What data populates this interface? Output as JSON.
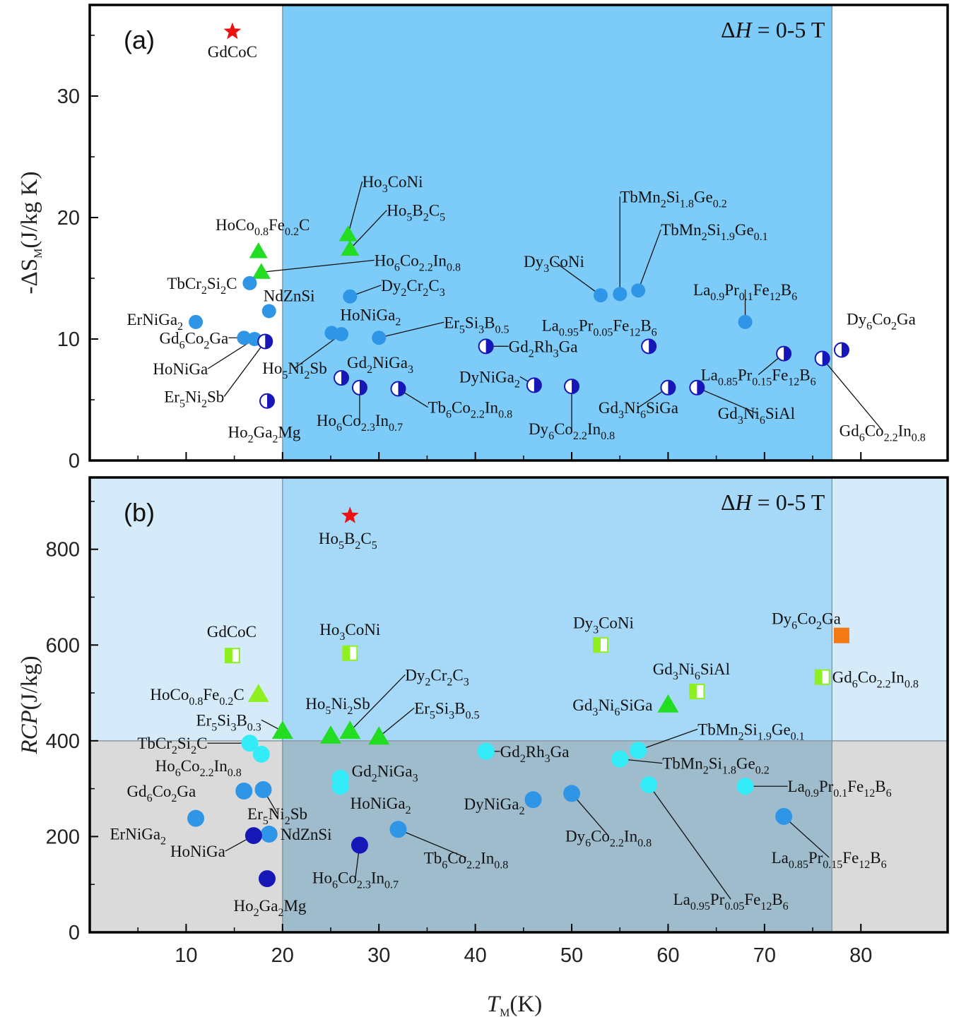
{
  "colors": {
    "region_blue": "#7dcbf8",
    "panel_b_light": "#d5ebfa",
    "panel_b_mid": "#a6d8f8",
    "panel_b_gray": "#dadada",
    "panel_b_dark": "#9ebccc",
    "blue": "#2f95e6",
    "navy": "#1717b8",
    "cyan": "#33ecf8",
    "green": "#22dd22",
    "lime": "#8ef020",
    "red": "#ee1111",
    "orange": "#f47a14"
  },
  "figure": {
    "x_axis_title": "T_M(K)",
    "x_ticks": [
      "10",
      "20",
      "30",
      "40",
      "50",
      "60",
      "70",
      "80"
    ]
  },
  "chart_data": [
    {
      "panel": "(a)",
      "type": "scatter",
      "title": "ΔH = 0-5 T",
      "xlabel": "T_M(K)",
      "ylabel": "-ΔS_M(J/kg K)",
      "xlim": [
        0,
        89
      ],
      "ylim": [
        0,
        37.5
      ],
      "yticks": [
        0,
        10,
        20,
        30
      ],
      "highlight_band_x": [
        20,
        77
      ],
      "points": [
        {
          "name": "GdCoC",
          "x": 14.8,
          "y": 35.3,
          "marker": "star",
          "color": "red"
        },
        {
          "name": "HoCo_{0.8}Fe_{0.2}C",
          "x": 17.5,
          "y": 17.2,
          "marker": "triangle",
          "color": "green"
        },
        {
          "name": "Ho_{6}Co_{2.2}In_{0.8}",
          "x": 17.8,
          "y": 15.5,
          "marker": "triangle",
          "color": "green"
        },
        {
          "name": "Ho_{3}CoNi",
          "x": 26.8,
          "y": 18.6,
          "marker": "triangle",
          "color": "green"
        },
        {
          "name": "Ho_{5}B_{2}C_{5}",
          "x": 27.0,
          "y": 17.4,
          "marker": "triangle",
          "color": "green"
        },
        {
          "name": "TbCr_{2}Si_{2}C",
          "x": 16.6,
          "y": 14.6,
          "marker": "circle",
          "color": "blue"
        },
        {
          "name": "NdZnSi",
          "x": 18.6,
          "y": 12.3,
          "marker": "circle",
          "color": "blue"
        },
        {
          "name": "ErNiGa_{2}",
          "x": 11.0,
          "y": 11.4,
          "marker": "circle",
          "color": "blue"
        },
        {
          "name": "Gd_{6}Co_{2}Ga",
          "x": 16.0,
          "y": 10.1,
          "marker": "circle",
          "color": "blue"
        },
        {
          "name": "HoNiGa",
          "x": 17.1,
          "y": 10.0,
          "marker": "circle",
          "color": "blue"
        },
        {
          "name": "Er_{5}Ni_{2}Sb",
          "x": 18.2,
          "y": 9.8,
          "marker": "halfcircle",
          "color": "navy"
        },
        {
          "name": "Ho_{2}Ga_{2}Mg",
          "x": 18.4,
          "y": 4.9,
          "marker": "halfcircle",
          "color": "navy"
        },
        {
          "name": "Dy_{2}Cr_{2}C_{3}",
          "x": 27.0,
          "y": 13.5,
          "marker": "circle",
          "color": "blue"
        },
        {
          "name": "HoNiGa_{2}",
          "x": 25.1,
          "y": 10.5,
          "marker": "circle",
          "color": "blue"
        },
        {
          "name": "Ho_{5}Ni_{2}Sb",
          "x": 26.1,
          "y": 10.4,
          "marker": "circle",
          "color": "blue"
        },
        {
          "name": "Er_{5}Si_{3}B_{0.5}",
          "x": 30.0,
          "y": 10.1,
          "marker": "circle",
          "color": "blue"
        },
        {
          "name": "Gd_{2}NiGa_{3}",
          "x": 26.1,
          "y": 6.8,
          "marker": "halfcircle",
          "color": "navy"
        },
        {
          "name": "Ho_{6}Co_{2.3}In_{0.7}",
          "x": 28.0,
          "y": 6.0,
          "marker": "halfcircle",
          "color": "navy"
        },
        {
          "name": "Tb_{6}Co_{2.2}In_{0.8}",
          "x": 32.0,
          "y": 5.9,
          "marker": "halfcircle",
          "color": "navy"
        },
        {
          "name": "Gd_{2}Rh_{3}Ga",
          "x": 41.1,
          "y": 9.4,
          "marker": "halfcircle",
          "color": "navy"
        },
        {
          "name": "DyNiGa_{2}",
          "x": 46.1,
          "y": 6.2,
          "marker": "halfcircle",
          "color": "navy"
        },
        {
          "name": "Dy_{6}Co_{2.2}In_{0.8}",
          "x": 50.0,
          "y": 6.1,
          "marker": "halfcircle",
          "color": "navy"
        },
        {
          "name": "Dy_{3}CoNi",
          "x": 53.0,
          "y": 13.6,
          "marker": "circle",
          "color": "blue"
        },
        {
          "name": "TbMn_{2}Si_{1.8}Ge_{0.2}",
          "x": 55.0,
          "y": 13.7,
          "marker": "circle",
          "color": "blue"
        },
        {
          "name": "TbMn_{2}Si_{1.9}Ge_{0.1}",
          "x": 56.9,
          "y": 14.0,
          "marker": "circle",
          "color": "blue"
        },
        {
          "name": "La_{0.95}Pr_{0.05}Fe_{12}B_{6}",
          "x": 58.0,
          "y": 9.4,
          "marker": "halfcircle",
          "color": "navy"
        },
        {
          "name": "Gd_{3}Ni_{6}SiGa",
          "x": 60.0,
          "y": 6.0,
          "marker": "halfcircle",
          "color": "navy"
        },
        {
          "name": "Gd_{3}Ni_{6}SiAl",
          "x": 63.0,
          "y": 6.0,
          "marker": "halfcircle",
          "color": "navy"
        },
        {
          "name": "La_{0.9}Pr_{0.1}Fe_{12}B_{6}",
          "x": 68.0,
          "y": 11.4,
          "marker": "circle",
          "color": "blue"
        },
        {
          "name": "La_{0.85}Pr_{0.15}Fe_{12}B_{6}",
          "x": 72.0,
          "y": 8.8,
          "marker": "halfcircle",
          "color": "navy"
        },
        {
          "name": "Gd_{6}Co_{2.2}In_{0.8}",
          "x": 76.0,
          "y": 8.4,
          "marker": "halfcircle",
          "color": "navy"
        },
        {
          "name": "Dy_{6}Co_{2}Ga",
          "x": 78.0,
          "y": 9.1,
          "marker": "halfcircle",
          "color": "navy"
        }
      ]
    },
    {
      "panel": "(b)",
      "type": "scatter",
      "title": "ΔH = 0-5 T",
      "xlabel": "T_M(K)",
      "ylabel": "RCP(J/kg)",
      "xlim": [
        0,
        89
      ],
      "ylim": [
        0,
        950
      ],
      "yticks": [
        0,
        200,
        400,
        600,
        800
      ],
      "highlight_band_x": [
        20,
        77
      ],
      "threshold_y": 400,
      "points": [
        {
          "name": "Ho_{5}B_{2}C_{5}",
          "x": 27.0,
          "y": 870,
          "marker": "star",
          "color": "red"
        },
        {
          "name": "GdCoC",
          "x": 14.8,
          "y": 578,
          "marker": "halfsquare",
          "color": "lime"
        },
        {
          "name": "Ho_{3}CoNi",
          "x": 27.0,
          "y": 583,
          "marker": "halfsquare",
          "color": "lime"
        },
        {
          "name": "Dy_{3}CoNi",
          "x": 53.0,
          "y": 600,
          "marker": "halfsquare",
          "color": "lime"
        },
        {
          "name": "Gd_{3}Ni_{6}SiAl",
          "x": 63.0,
          "y": 503,
          "marker": "halfsquare",
          "color": "lime"
        },
        {
          "name": "Gd_{6}Co_{2.2}In_{0.8}",
          "x": 76.0,
          "y": 533,
          "marker": "halfsquare",
          "color": "lime"
        },
        {
          "name": "Dy_{6}Co_{2}Ga",
          "x": 78.0,
          "y": 620,
          "marker": "square",
          "color": "orange"
        },
        {
          "name": "HoCo_{0.8}Fe_{0.2}C",
          "x": 17.5,
          "y": 497,
          "marker": "triangle",
          "color": "lime"
        },
        {
          "name": "Er_{5}Si_{3}B_{0.3}",
          "x": 20.0,
          "y": 420,
          "marker": "triangle",
          "color": "green"
        },
        {
          "name": "Ho_{5}Ni_{2}Sb",
          "x": 25.0,
          "y": 410,
          "marker": "triangle",
          "color": "green"
        },
        {
          "name": "Dy_{2}Cr_{2}C_{3}",
          "x": 27.0,
          "y": 420,
          "marker": "triangle",
          "color": "green"
        },
        {
          "name": "Er_{5}Si_{3}B_{0.5}",
          "x": 30.0,
          "y": 408,
          "marker": "triangle",
          "color": "green"
        },
        {
          "name": "Gd_{3}Ni_{6}SiGa",
          "x": 60.0,
          "y": 475,
          "marker": "triangle",
          "color": "green"
        },
        {
          "name": "TbCr_{2}Si_{2}C",
          "x": 16.6,
          "y": 395,
          "marker": "circle",
          "color": "cyan"
        },
        {
          "name": "Ho_{6}Co_{2.2}In_{0.8}",
          "x": 17.8,
          "y": 372,
          "marker": "circle",
          "color": "cyan"
        },
        {
          "name": "Gd_{2}NiGa_{3}",
          "x": 26.0,
          "y": 322,
          "marker": "circle",
          "color": "cyan"
        },
        {
          "name": "HoNiGa_{2}",
          "x": 26.0,
          "y": 305,
          "marker": "circle",
          "color": "cyan"
        },
        {
          "name": "Gd_{2}Rh_{3}Ga",
          "x": 41.1,
          "y": 378,
          "marker": "circle",
          "color": "cyan"
        },
        {
          "name": "TbMn_{2}Si_{1.9}Ge_{0.1}",
          "x": 56.9,
          "y": 380,
          "marker": "circle",
          "color": "cyan"
        },
        {
          "name": "TbMn_{2}Si_{1.8}Ge_{0.2}",
          "x": 55.0,
          "y": 362,
          "marker": "circle",
          "color": "cyan"
        },
        {
          "name": "La_{0.95}Pr_{0.05}Fe_{12}B_{6}",
          "x": 58.0,
          "y": 308,
          "marker": "circle",
          "color": "cyan"
        },
        {
          "name": "La_{0.9}Pr_{0.1}Fe_{12}B_{6}",
          "x": 68.0,
          "y": 305,
          "marker": "circle",
          "color": "cyan"
        },
        {
          "name": "Gd_{6}Co_{2}Ga",
          "x": 16.0,
          "y": 295,
          "marker": "circle",
          "color": "blue"
        },
        {
          "name": "Er_{5}Ni_{2}Sb",
          "x": 18.0,
          "y": 298,
          "marker": "circle",
          "color": "blue"
        },
        {
          "name": "ErNiGa_{2}",
          "x": 11.0,
          "y": 238,
          "marker": "circle",
          "color": "blue"
        },
        {
          "name": "NdZnSi",
          "x": 18.6,
          "y": 205,
          "marker": "circle",
          "color": "blue"
        },
        {
          "name": "HoNiGa",
          "x": 17.0,
          "y": 202,
          "marker": "circle",
          "color": "navy"
        },
        {
          "name": "Ho_{2}Ga_{2}Mg",
          "x": 18.4,
          "y": 112,
          "marker": "circle",
          "color": "navy"
        },
        {
          "name": "Ho_{6}Co_{2.3}In_{0.7}",
          "x": 28.0,
          "y": 182,
          "marker": "circle",
          "color": "navy"
        },
        {
          "name": "Tb_{6}Co_{2.2}In_{0.8}",
          "x": 32.0,
          "y": 215,
          "marker": "circle",
          "color": "blue"
        },
        {
          "name": "DyNiGa_{2}",
          "x": 46.0,
          "y": 277,
          "marker": "circle",
          "color": "blue"
        },
        {
          "name": "Dy_{6}Co_{2.2}In_{0.8}",
          "x": 50.0,
          "y": 290,
          "marker": "circle",
          "color": "blue"
        },
        {
          "name": "La_{0.85}Pr_{0.15}Fe_{12}B_{6}",
          "x": 72.0,
          "y": 242,
          "marker": "circle",
          "color": "blue"
        }
      ]
    }
  ]
}
